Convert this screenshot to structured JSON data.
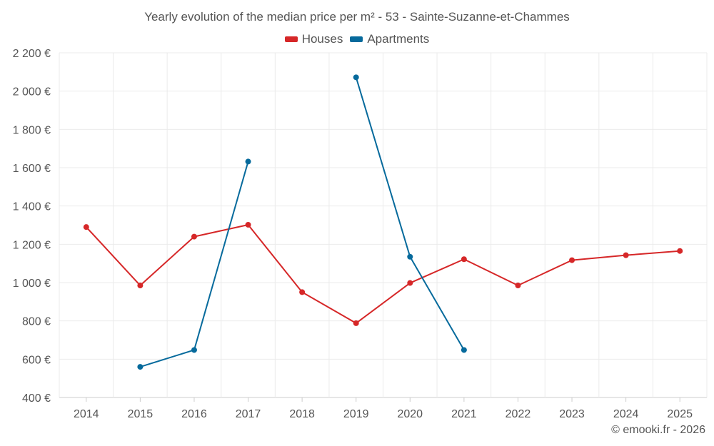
{
  "title": "Yearly evolution of the median price per m² - 53 - Sainte-Suzanne-et-Chammes",
  "credit": "© emooki.fr - 2026",
  "colors": {
    "houses": "#d62728",
    "apartments": "#066a9c",
    "grid": "#ebebeb",
    "axis": "#cccccc"
  },
  "chart_data": {
    "type": "line",
    "title": "Yearly evolution of the median price per m² - 53 - Sainte-Suzanne-et-Chammes",
    "xlabel": "",
    "ylabel": "",
    "categories": [
      "2014",
      "2015",
      "2016",
      "2017",
      "2018",
      "2019",
      "2020",
      "2021",
      "2022",
      "2023",
      "2024",
      "2025"
    ],
    "ylim": [
      400,
      2200
    ],
    "yticks": [
      400,
      600,
      800,
      1000,
      1200,
      1400,
      1600,
      1800,
      2000,
      2200
    ],
    "ytick_labels": [
      "400 €",
      "600 €",
      "800 €",
      "1 000 €",
      "1 200 €",
      "1 400 €",
      "1 600 €",
      "1 800 €",
      "2 000 €",
      "2 200 €"
    ],
    "grid": true,
    "legend_position": "top-center",
    "series": [
      {
        "name": "Houses",
        "color": "#d62728",
        "values": [
          1290,
          985,
          1240,
          1302,
          950,
          788,
          998,
          1122,
          985,
          1117,
          1143,
          1165
        ]
      },
      {
        "name": "Apartments",
        "color": "#066a9c",
        "values": [
          null,
          560,
          648,
          1632,
          null,
          2072,
          1135,
          648,
          null,
          null,
          null,
          null
        ]
      }
    ]
  }
}
